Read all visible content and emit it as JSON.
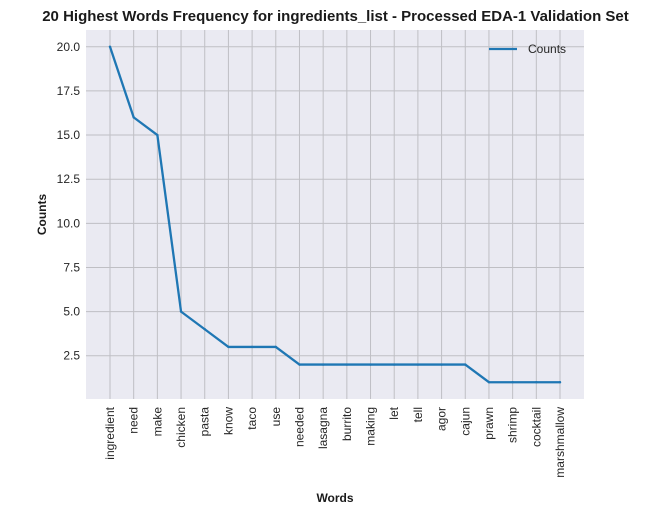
{
  "chart_data": {
    "type": "line",
    "title": "20 Highest Words Frequency for ingredients_list - Processed EDA-1 Validation Set",
    "xlabel": "Words",
    "ylabel": "Counts",
    "categories": [
      "ingredient",
      "need",
      "make",
      "chicken",
      "pasta",
      "know",
      "taco",
      "use",
      "needed",
      "lasagna",
      "burrito",
      "making",
      "let",
      "tell",
      "agor",
      "cajun",
      "prawn",
      "shrimp",
      "cocktail",
      "marshmallow"
    ],
    "series": [
      {
        "name": "Counts",
        "values": [
          20,
          16,
          15,
          5,
          4,
          3,
          3,
          3,
          2,
          2,
          2,
          2,
          2,
          2,
          2,
          2,
          1,
          1,
          1,
          1
        ],
        "color": "#1f77b4"
      }
    ],
    "ylim": [
      0.05,
      20.95
    ],
    "yticks": [
      2.5,
      5.0,
      7.5,
      10.0,
      12.5,
      15.0,
      17.5,
      20.0
    ],
    "ytick_labels": [
      "2.5",
      "5.0",
      "7.5",
      "10.0",
      "12.5",
      "15.0",
      "17.5",
      "20.0"
    ],
    "grid": true,
    "legend": "top-right",
    "background": "#eaeaf2",
    "grid_color": "#bfbfc4"
  }
}
